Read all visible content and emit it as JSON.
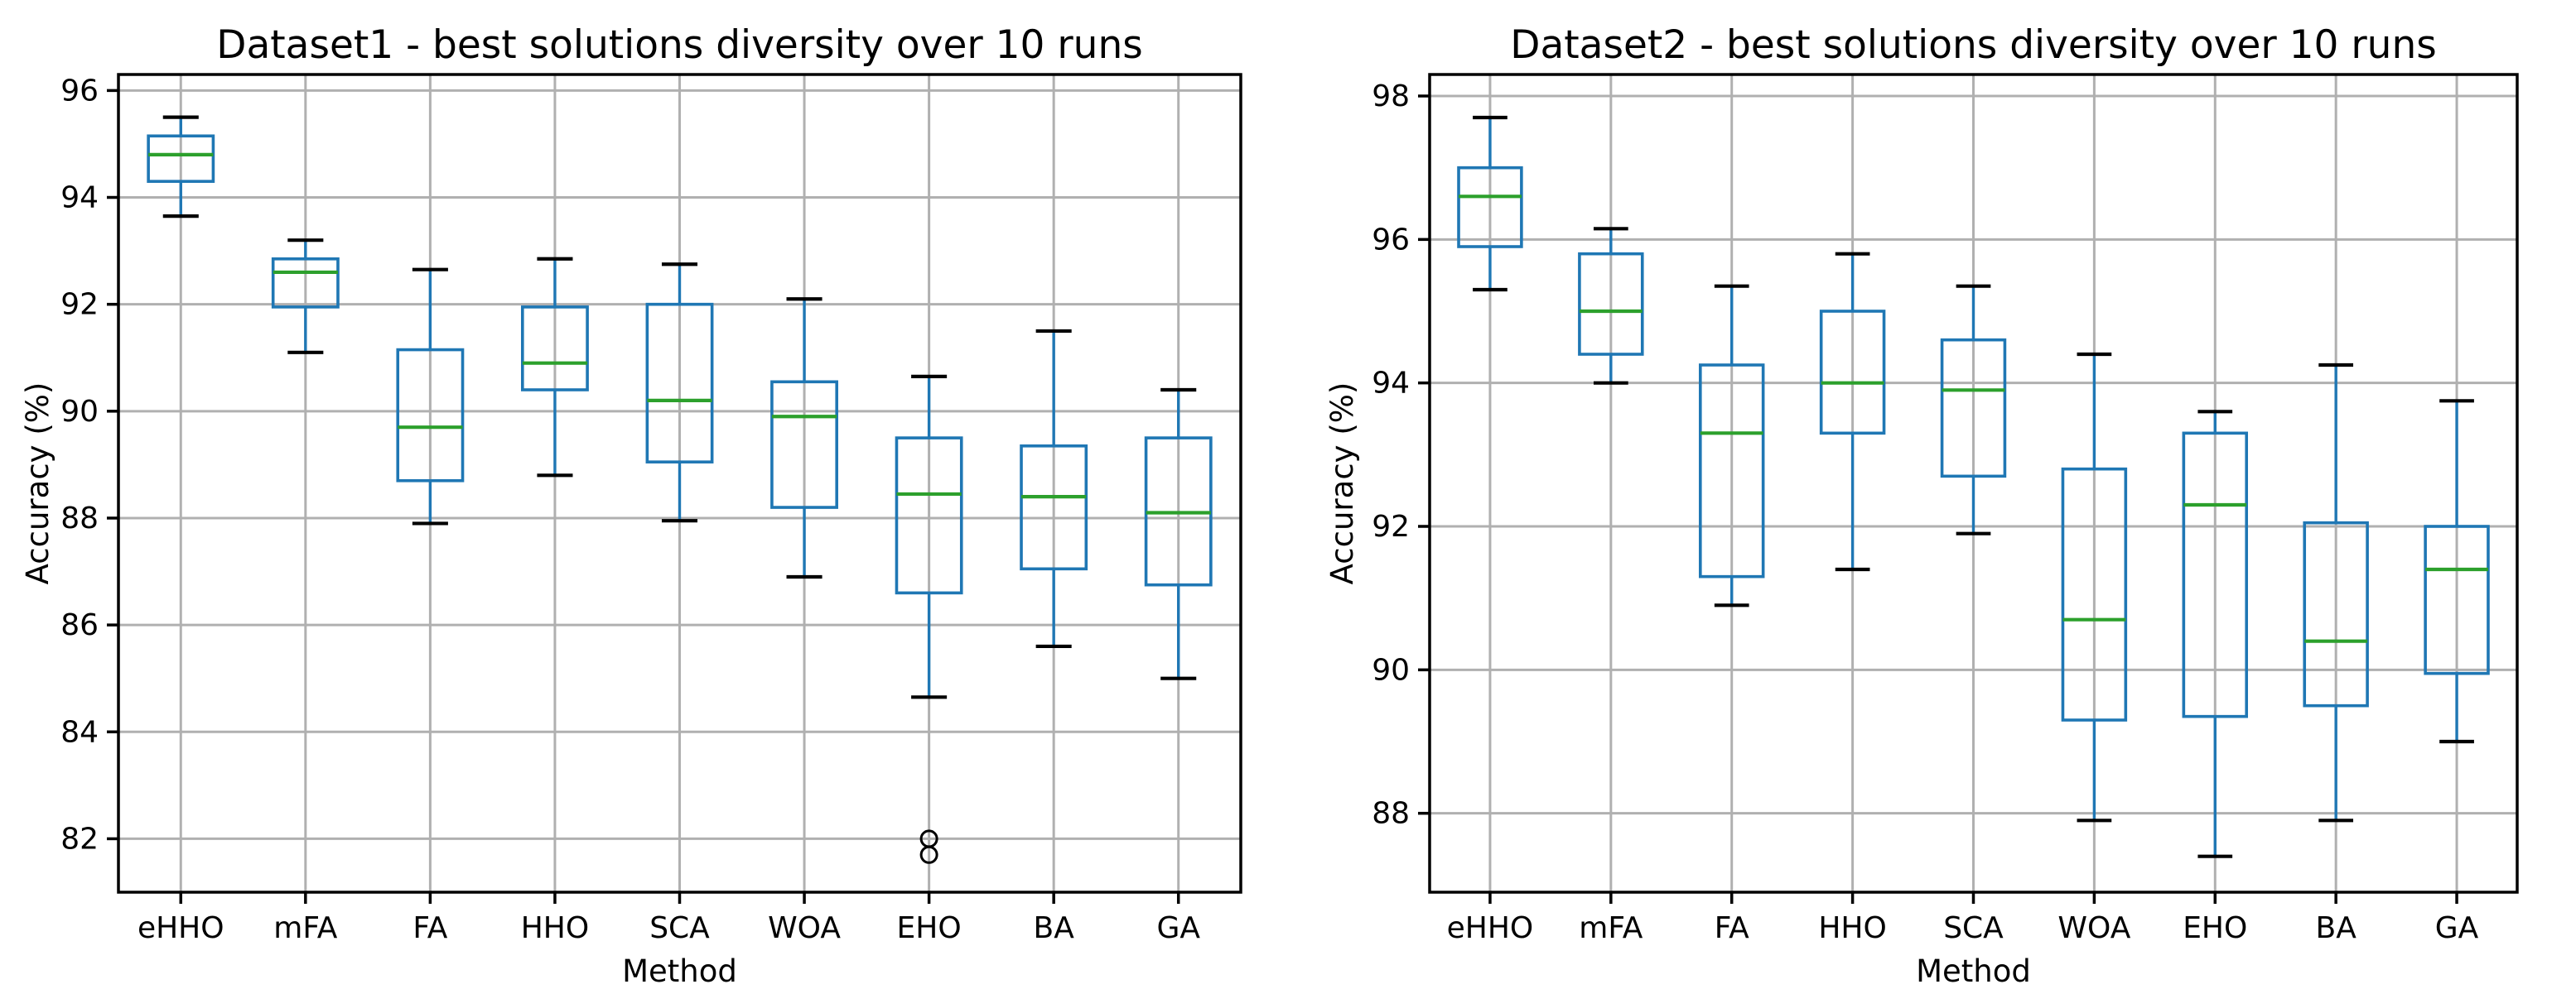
{
  "figure": {
    "background": "#ffffff"
  },
  "colors": {
    "box": "#1f77b4",
    "whisker": "#1f77b4",
    "cap": "#000000",
    "median": "#2ca02c",
    "flier": "#000000",
    "grid": "#b0b0b0",
    "spine": "#000000",
    "text": "#000000"
  },
  "chart_data": [
    {
      "type": "boxplot",
      "title": "Dataset1 - best solutions diversity over 10 runs",
      "xlabel": "Method",
      "ylabel": "Accuracy (%)",
      "categories": [
        "eHHO",
        "mFA",
        "FA",
        "HHO",
        "SCA",
        "WOA",
        "EHO",
        "BA",
        "GA"
      ],
      "ylim": [
        81.0,
        96.3
      ],
      "yticks": [
        82,
        84,
        86,
        88,
        90,
        92,
        94,
        96
      ],
      "grid": true,
      "legend": "none",
      "boxes": [
        {
          "whislo": 93.65,
          "q1": 94.3,
          "med": 94.8,
          "q3": 95.15,
          "whishi": 95.5,
          "fliers": []
        },
        {
          "whislo": 91.1,
          "q1": 91.95,
          "med": 92.6,
          "q3": 92.85,
          "whishi": 93.2,
          "fliers": []
        },
        {
          "whislo": 87.9,
          "q1": 88.7,
          "med": 89.7,
          "q3": 91.15,
          "whishi": 92.65,
          "fliers": []
        },
        {
          "whislo": 88.8,
          "q1": 90.4,
          "med": 90.9,
          "q3": 91.95,
          "whishi": 92.85,
          "fliers": []
        },
        {
          "whislo": 87.95,
          "q1": 89.05,
          "med": 90.2,
          "q3": 92.0,
          "whishi": 92.75,
          "fliers": []
        },
        {
          "whislo": 86.9,
          "q1": 88.2,
          "med": 89.9,
          "q3": 90.55,
          "whishi": 92.1,
          "fliers": []
        },
        {
          "whislo": 84.65,
          "q1": 86.6,
          "med": 88.45,
          "q3": 89.5,
          "whishi": 90.65,
          "fliers": [
            82.0,
            81.7
          ]
        },
        {
          "whislo": 85.6,
          "q1": 87.05,
          "med": 88.4,
          "q3": 89.35,
          "whishi": 91.5,
          "fliers": []
        },
        {
          "whislo": 85.0,
          "q1": 86.75,
          "med": 88.1,
          "q3": 89.5,
          "whishi": 90.4,
          "fliers": []
        }
      ]
    },
    {
      "type": "boxplot",
      "title": "Dataset2 - best solutions diversity over 10 runs",
      "xlabel": "Method",
      "ylabel": "Accuracy (%)",
      "categories": [
        "eHHO",
        "mFA",
        "FA",
        "HHO",
        "SCA",
        "WOA",
        "EHO",
        "BA",
        "GA"
      ],
      "ylim": [
        86.9,
        98.3
      ],
      "yticks": [
        88,
        90,
        92,
        94,
        96,
        98
      ],
      "grid": true,
      "legend": "none",
      "boxes": [
        {
          "whislo": 95.3,
          "q1": 95.9,
          "med": 96.6,
          "q3": 97.0,
          "whishi": 97.7,
          "fliers": []
        },
        {
          "whislo": 94.0,
          "q1": 94.4,
          "med": 95.0,
          "q3": 95.8,
          "whishi": 96.15,
          "fliers": []
        },
        {
          "whislo": 90.9,
          "q1": 91.3,
          "med": 93.3,
          "q3": 94.25,
          "whishi": 95.35,
          "fliers": []
        },
        {
          "whislo": 91.4,
          "q1": 93.3,
          "med": 94.0,
          "q3": 95.0,
          "whishi": 95.8,
          "fliers": []
        },
        {
          "whislo": 91.9,
          "q1": 92.7,
          "med": 93.9,
          "q3": 94.6,
          "whishi": 95.35,
          "fliers": []
        },
        {
          "whislo": 87.9,
          "q1": 89.3,
          "med": 90.7,
          "q3": 92.8,
          "whishi": 94.4,
          "fliers": []
        },
        {
          "whislo": 87.4,
          "q1": 89.35,
          "med": 92.3,
          "q3": 93.3,
          "whishi": 93.6,
          "fliers": []
        },
        {
          "whislo": 87.9,
          "q1": 89.5,
          "med": 90.4,
          "q3": 92.05,
          "whishi": 94.25,
          "fliers": []
        },
        {
          "whislo": 89.0,
          "q1": 89.95,
          "med": 91.4,
          "q3": 92.0,
          "whishi": 93.75,
          "fliers": []
        }
      ]
    }
  ]
}
